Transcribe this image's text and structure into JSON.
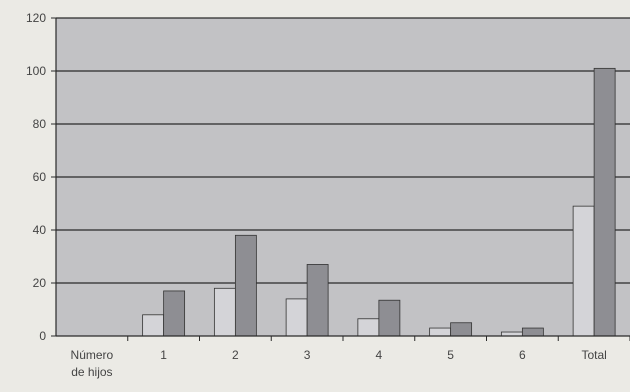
{
  "chart_data": {
    "type": "bar",
    "categories": [
      "Número de hijos",
      "1",
      "2",
      "3",
      "4",
      "5",
      "6",
      "Total"
    ],
    "series": [
      {
        "values": [
          0,
          8,
          18,
          14,
          6.5,
          3,
          1.5,
          49
        ]
      },
      {
        "values": [
          0,
          17,
          38,
          27,
          13.5,
          5,
          3,
          101
        ]
      }
    ],
    "ylim": [
      0,
      120
    ],
    "yticks": [
      0,
      20,
      40,
      60,
      80,
      100,
      120
    ],
    "grid": true
  },
  "colors": {
    "plot_background": "#c2c2c5",
    "page_background": "#ebeae5",
    "gridline": "#2a2a2a",
    "series_light": "#d4d4d8",
    "series_dark": "#8e8e93",
    "bar_outline": "#333333"
  }
}
